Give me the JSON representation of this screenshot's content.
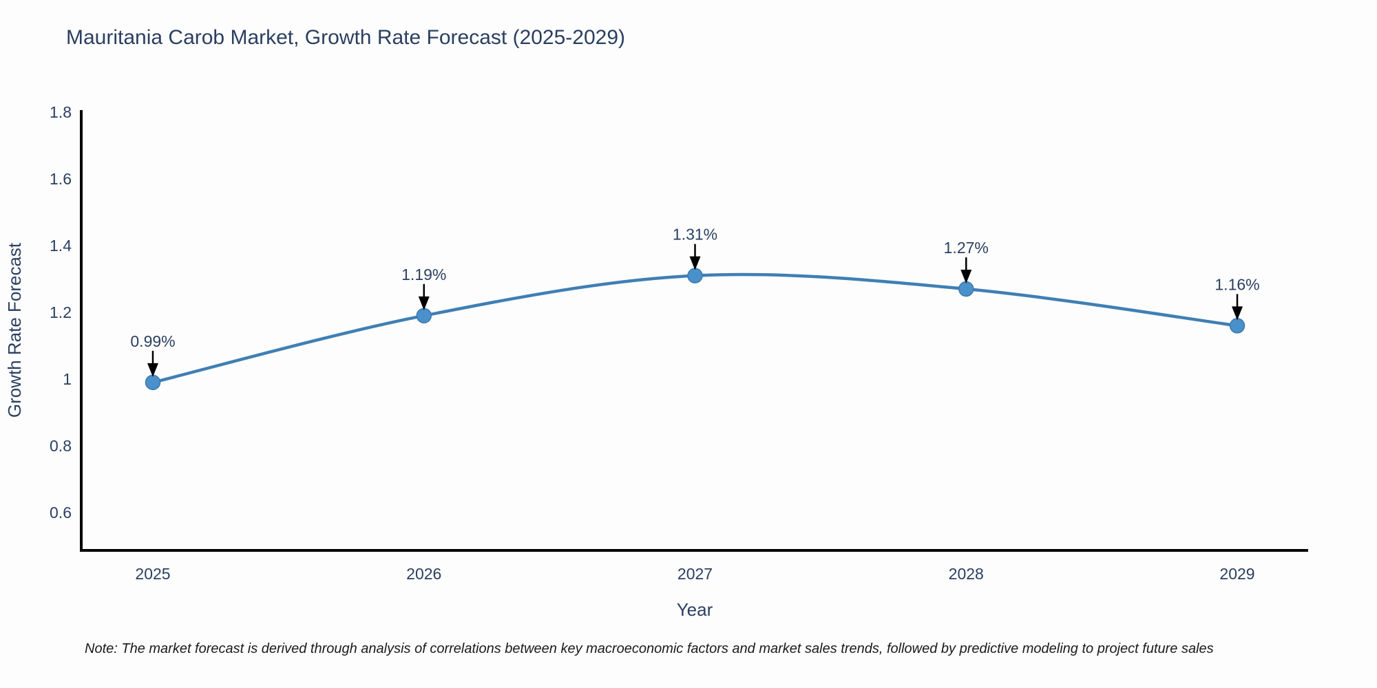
{
  "title": "Mauritania Carob Market, Growth Rate Forecast (2025-2029)",
  "note": "Note: The market forecast is derived through analysis of correlations between key macroeconomic factors and market sales trends, followed by predictive modeling to project future sales",
  "chart_data": {
    "type": "line",
    "title": "Mauritania Carob Market, Growth Rate Forecast (2025-2029)",
    "xlabel": "Year",
    "ylabel": "Growth Rate Forecast",
    "x": [
      2025,
      2026,
      2027,
      2028,
      2029
    ],
    "values": [
      0.99,
      1.19,
      1.31,
      1.27,
      1.16
    ],
    "point_labels": [
      "0.99%",
      "1.19%",
      "1.31%",
      "1.27%",
      "1.16%"
    ],
    "y_ticks": [
      1.8,
      1.6,
      1.4,
      1.2,
      1,
      0.8,
      0.6
    ],
    "ylim": [
      0.487,
      1.806
    ],
    "grid": false,
    "legend": "none",
    "line_shape": "spline",
    "annotation_style": "value label with black down arrow above each point",
    "colors": {
      "line": "#3f7fb4",
      "marker": "#4a90ca",
      "marker_edge": "#3a79ad",
      "axis": "#000000",
      "text": "#2a3f5f",
      "arrow": "#000000",
      "background": "#fdfdfe"
    }
  }
}
